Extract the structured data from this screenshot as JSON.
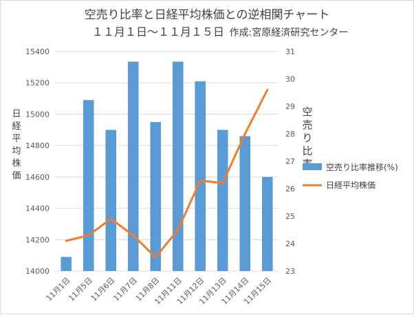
{
  "chart_data": {
    "type": "bar",
    "title": "空売り比率と日経平均株価との逆相関チャート",
    "subtitle_range": "１１月１日〜１１月１５日",
    "subtitle_source": "作成:宮原経済研究センター",
    "categories": [
      "11月1日",
      "11月5日",
      "11月6日",
      "11月7日",
      "11月8日",
      "11月11日",
      "11月12日",
      "11月13日",
      "11月14日",
      "11月15日"
    ],
    "left_axis": {
      "label": "日経平均株価",
      "min": 14000,
      "max": 15400,
      "ticks": [
        14000,
        14200,
        14400,
        14600,
        14800,
        15000,
        15200,
        15400
      ]
    },
    "right_axis": {
      "label": "空売り比率",
      "min": 23,
      "max": 31,
      "ticks": [
        23,
        24,
        25,
        26,
        27,
        28,
        29,
        30,
        31
      ]
    },
    "series": [
      {
        "name": "空売り比率推移(%)",
        "kind": "bar",
        "axis": "left",
        "color": "#5b9bd5",
        "values": [
          14090,
          15090,
          14900,
          15335,
          14950,
          15335,
          15210,
          14900,
          14860,
          14600
        ]
      },
      {
        "name": "日経平均株価",
        "kind": "line",
        "axis": "right",
        "color": "#ed7d31",
        "values": [
          24.1,
          24.3,
          24.9,
          24.3,
          23.5,
          24.5,
          26.3,
          26.2,
          28.0,
          29.6
        ]
      }
    ],
    "legend_position": "right",
    "grid": true
  }
}
